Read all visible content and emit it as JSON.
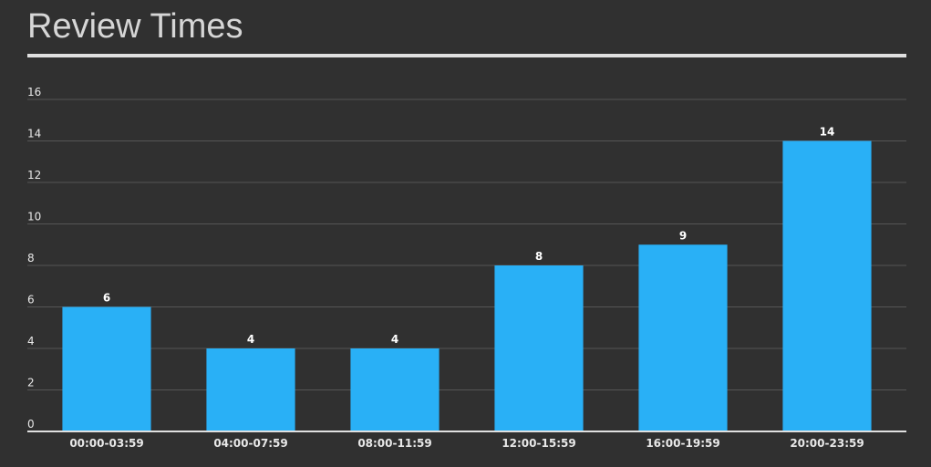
{
  "chart_data": {
    "type": "bar",
    "title": "Review Times",
    "categories": [
      "00:00-03:59",
      "04:00-07:59",
      "08:00-11:59",
      "12:00-15:59",
      "16:00-19:59",
      "20:00-23:59"
    ],
    "values": [
      6,
      4,
      4,
      8,
      9,
      14
    ],
    "xlabel": "",
    "ylabel": "",
    "ylim": [
      0,
      16
    ],
    "yticks": [
      0,
      2,
      4,
      6,
      8,
      10,
      12,
      14,
      16
    ],
    "grid": true,
    "legend": "none",
    "data_labels": true
  },
  "colors": {
    "background": "#303030",
    "bar": "#29b0f6",
    "gridline": "#555555",
    "axis": "#e0e0e0",
    "title": "#d6d6d6"
  }
}
